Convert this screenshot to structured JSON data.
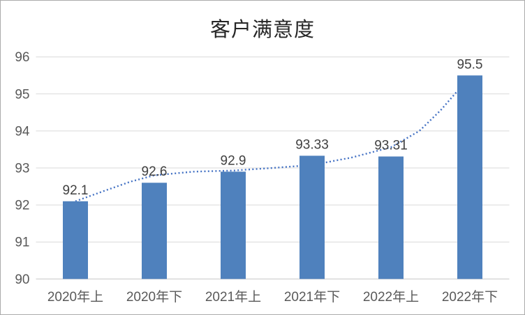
{
  "window": {
    "background": "#ffffff",
    "border_color": "#ababab"
  },
  "chart_data": {
    "type": "bar",
    "title": "客户满意度",
    "categories": [
      "2020年上",
      "2020年下",
      "2021年上",
      "2021年下",
      "2022年上",
      "2022年下"
    ],
    "values": [
      92.1,
      92.6,
      92.9,
      93.33,
      93.31,
      95.5
    ],
    "data_labels": [
      "92.1",
      "92.6",
      "92.9",
      "93.33",
      "93.31",
      "95.5"
    ],
    "xlabel": "",
    "ylabel": "",
    "y_axis": {
      "min": 90,
      "max": 96,
      "step": 1,
      "ticks": [
        96,
        95,
        94,
        93,
        92,
        91,
        90
      ]
    },
    "grid": true,
    "legend": false,
    "trendline": {
      "style": "dotted",
      "points": [
        [
          0,
          92.1
        ],
        [
          0.35,
          92.37
        ],
        [
          0.7,
          92.63
        ],
        [
          1,
          92.8
        ],
        [
          1.5,
          92.9
        ],
        [
          2,
          92.93
        ],
        [
          2.5,
          93.0
        ],
        [
          3,
          93.08
        ],
        [
          3.5,
          93.28
        ],
        [
          4,
          93.56
        ],
        [
          4.36,
          94.0
        ],
        [
          4.63,
          94.56
        ],
        [
          4.81,
          95.0
        ],
        [
          5,
          95.45
        ]
      ]
    },
    "colors": {
      "bar": "#4f81bd",
      "trendline": "#4472c4",
      "gridline": "#d9d9d9",
      "axis_line": "#c6c6c6",
      "axis_label": "#595959",
      "data_label": "#404040",
      "title": "#262626"
    }
  }
}
